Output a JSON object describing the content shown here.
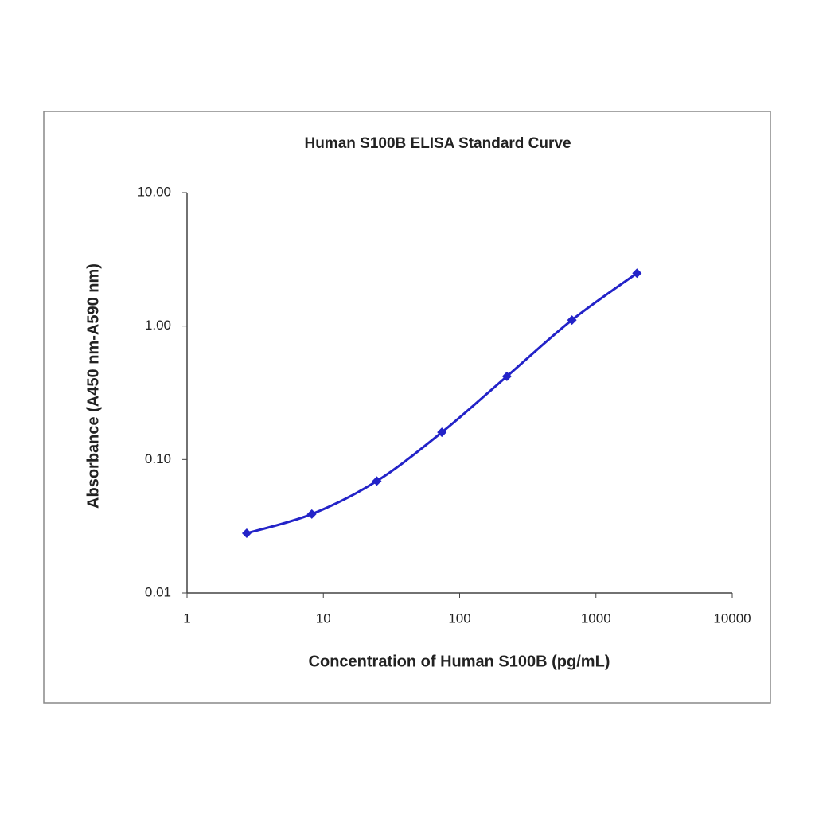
{
  "chart_data": {
    "type": "line",
    "title": "Human S100B ELISA Standard Curve",
    "x_label": "Concentration of Human S100B (pg/mL)",
    "y_label": "Absorbance (A450 nm-A590 nm)",
    "x": [
      2.74,
      8.23,
      24.69,
      74.07,
      222.2,
      666.7,
      2000
    ],
    "series": [
      {
        "name": "Absorbance",
        "color": "#2323c8",
        "values": [
          0.028,
          0.039,
          0.069,
          0.16,
          0.42,
          1.11,
          2.49
        ]
      }
    ],
    "xscale": "log",
    "yscale": "log",
    "xlim": [
      1,
      10000
    ],
    "xticks": [
      1,
      10,
      100,
      1000,
      10000
    ],
    "ylim": [
      0.01,
      10
    ],
    "yticks": [
      0.01,
      {
        "value": 0.1,
        "label": "0.10"
      },
      {
        "value": 1,
        "label": "1.00"
      },
      {
        "value": 10,
        "label": "10.00"
      }
    ],
    "grid": false,
    "smooth": true,
    "marker": "diamond"
  }
}
